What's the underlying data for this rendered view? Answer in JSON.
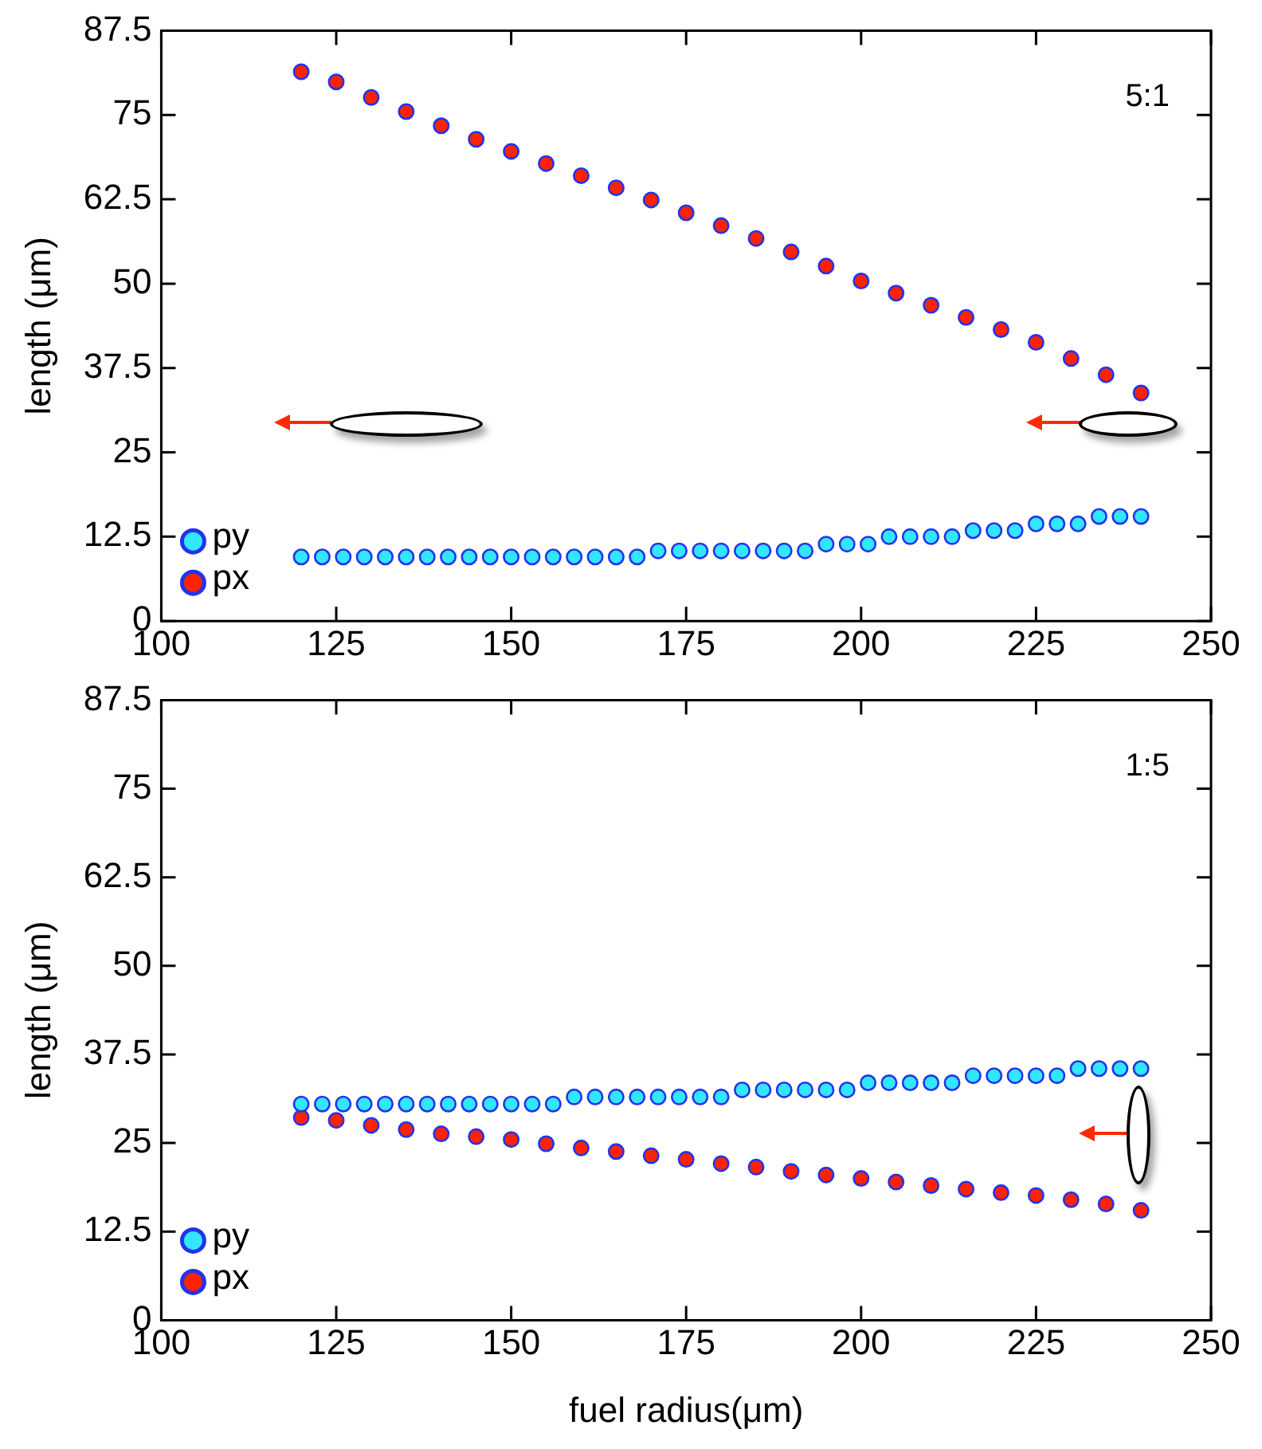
{
  "chart_data": [
    {
      "type": "scatter",
      "ylabel": "length (μm)",
      "annotations": [
        "5:1"
      ],
      "legend": "bottom left",
      "marker": "circle",
      "xlim": [
        100,
        250
      ],
      "xticks": [
        100,
        125,
        150,
        175,
        200,
        225,
        250
      ],
      "ylim": [
        0,
        87.5
      ],
      "yticks": [
        0,
        12.5,
        25,
        37.5,
        50,
        62.5,
        75,
        87.5
      ],
      "series": [
        {
          "name": "py",
          "color": "#33e6ff",
          "x": [
            120,
            123,
            126,
            129,
            132,
            135,
            138,
            141,
            144,
            147,
            150,
            153,
            156,
            159,
            162,
            165,
            168,
            171,
            174,
            177,
            180,
            183,
            186,
            189,
            192,
            195,
            198,
            201,
            204,
            207,
            210,
            213,
            216,
            219,
            222,
            225,
            228,
            231,
            234,
            237,
            240
          ],
          "values": [
            9.5,
            9.5,
            9.5,
            9.5,
            9.5,
            9.5,
            9.5,
            9.5,
            9.5,
            9.5,
            9.5,
            9.5,
            9.5,
            9.5,
            9.5,
            9.5,
            9.5,
            10.4,
            10.4,
            10.4,
            10.4,
            10.4,
            10.4,
            10.4,
            10.4,
            11.4,
            11.4,
            11.4,
            12.5,
            12.5,
            12.5,
            12.5,
            13.4,
            13.4,
            13.4,
            14.4,
            14.4,
            14.4,
            15.5,
            15.5,
            15.5
          ]
        },
        {
          "name": "px",
          "color": "#ff2200",
          "x": [
            120,
            125,
            130,
            135,
            140,
            145,
            150,
            155,
            160,
            165,
            170,
            175,
            180,
            185,
            190,
            195,
            200,
            205,
            210,
            215,
            220,
            225,
            230,
            235,
            240
          ],
          "values": [
            81.4,
            79.9,
            77.6,
            75.5,
            73.4,
            71.4,
            69.6,
            67.8,
            66.0,
            64.2,
            62.4,
            60.5,
            58.6,
            56.7,
            54.7,
            52.6,
            50.4,
            48.6,
            46.8,
            45.0,
            43.2,
            41.3,
            38.9,
            36.5,
            33.8
          ]
        }
      ]
    },
    {
      "type": "scatter",
      "xlabel": "fuel radius(μm)",
      "ylabel": "length (μm)",
      "annotations": [
        "1:5"
      ],
      "legend": "bottom left",
      "marker": "circle",
      "xlim": [
        100,
        250
      ],
      "xticks": [
        100,
        125,
        150,
        175,
        200,
        225,
        250
      ],
      "ylim": [
        0,
        87.5
      ],
      "yticks": [
        0,
        12.5,
        25,
        37.5,
        50,
        62.5,
        75,
        87.5
      ],
      "series": [
        {
          "name": "py",
          "color": "#33e6ff",
          "x": [
            120,
            123,
            126,
            129,
            132,
            135,
            138,
            141,
            144,
            147,
            150,
            153,
            156,
            159,
            162,
            165,
            168,
            171,
            174,
            177,
            180,
            183,
            186,
            189,
            192,
            195,
            198,
            201,
            204,
            207,
            210,
            213,
            216,
            219,
            222,
            225,
            228,
            231,
            234,
            237,
            240
          ],
          "values": [
            30.5,
            30.5,
            30.5,
            30.5,
            30.5,
            30.5,
            30.5,
            30.5,
            30.5,
            30.5,
            30.5,
            30.5,
            30.5,
            31.5,
            31.5,
            31.5,
            31.5,
            31.5,
            31.5,
            31.5,
            31.5,
            32.5,
            32.5,
            32.5,
            32.5,
            32.5,
            32.5,
            33.5,
            33.5,
            33.5,
            33.5,
            33.5,
            34.5,
            34.5,
            34.5,
            34.5,
            34.5,
            35.5,
            35.5,
            35.5,
            35.5
          ]
        },
        {
          "name": "px",
          "color": "#ff2200",
          "x": [
            120,
            125,
            130,
            135,
            140,
            145,
            150,
            155,
            160,
            165,
            170,
            175,
            180,
            185,
            190,
            195,
            200,
            205,
            210,
            215,
            220,
            225,
            230,
            235,
            240
          ],
          "values": [
            28.6,
            28.2,
            27.5,
            26.9,
            26.3,
            25.9,
            25.5,
            24.9,
            24.3,
            23.8,
            23.2,
            22.7,
            22.1,
            21.6,
            21.0,
            20.5,
            20.0,
            19.5,
            19.0,
            18.5,
            18.0,
            17.6,
            17.0,
            16.4,
            15.5
          ]
        }
      ]
    }
  ]
}
